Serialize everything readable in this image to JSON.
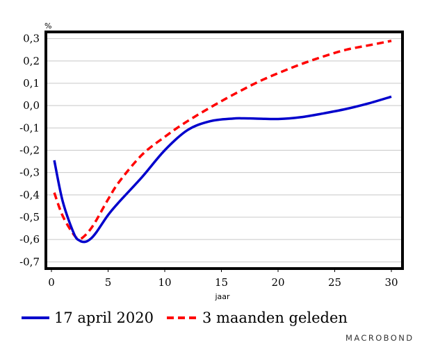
{
  "chart_data": {
    "type": "line",
    "unit": "%",
    "xlabel": "jaar",
    "ylabel": "",
    "xlim": [
      0,
      30
    ],
    "ylim": [
      -0.73,
      0.33
    ],
    "x_ticks": [
      0,
      5,
      10,
      15,
      20,
      25,
      30
    ],
    "x_tick_labels": [
      "0",
      "5",
      "10",
      "15",
      "20",
      "25",
      "30"
    ],
    "y_ticks": [
      -0.7,
      -0.6,
      -0.5,
      -0.4,
      -0.3,
      -0.2,
      -0.1,
      0.0,
      0.1,
      0.2,
      0.3
    ],
    "y_tick_labels": [
      "-0,7",
      "-0,6",
      "-0,5",
      "-0,4",
      "-0,3",
      "-0,2",
      "-0,1",
      "0,0",
      "0,1",
      "0,2",
      "0,3"
    ],
    "grid": "horizontal",
    "legend_position": "bottom",
    "series": [
      {
        "name": "17 april 2020",
        "color": "#0000cc",
        "style": "solid",
        "x": [
          0.25,
          1,
          2,
          2.5,
          3,
          3.5,
          4,
          5,
          6,
          8,
          10,
          12,
          14,
          16,
          17,
          18,
          20,
          22,
          24,
          26,
          28,
          30
        ],
        "y": [
          -0.245,
          -0.43,
          -0.575,
          -0.605,
          -0.61,
          -0.595,
          -0.565,
          -0.49,
          -0.43,
          -0.32,
          -0.2,
          -0.11,
          -0.07,
          -0.058,
          -0.057,
          -0.058,
          -0.06,
          -0.052,
          -0.035,
          -0.015,
          0.01,
          0.04
        ]
      },
      {
        "name": "3 maanden geleden",
        "color": "#ff0000",
        "style": "dashed",
        "x": [
          0.25,
          1,
          2,
          2.5,
          3,
          3.5,
          4,
          5,
          6,
          8,
          10,
          12,
          15,
          18,
          20,
          22,
          24,
          26,
          28,
          30
        ],
        "y": [
          -0.39,
          -0.495,
          -0.58,
          -0.597,
          -0.58,
          -0.55,
          -0.51,
          -0.42,
          -0.34,
          -0.22,
          -0.14,
          -0.07,
          0.02,
          0.1,
          0.145,
          0.185,
          0.22,
          0.25,
          0.27,
          0.29
        ]
      }
    ]
  },
  "brand": {
    "text": "MACROBOND"
  }
}
